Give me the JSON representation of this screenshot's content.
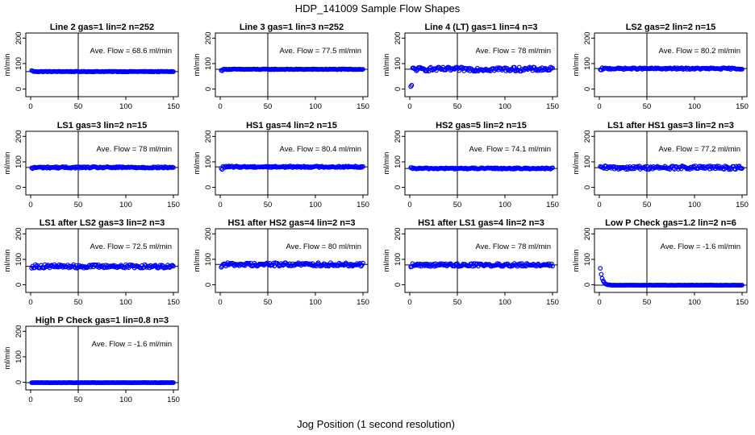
{
  "figure": {
    "title": "HDP_141009  Sample Flow Shapes",
    "xlabel": "Jog Position (1 second resolution)"
  },
  "colors": {
    "points": "#0000ff",
    "axes": "#000000",
    "background": "#ffffff"
  },
  "chart_data": [
    {
      "type": "scatter",
      "title": "Line 2 gas=1 lin=2 n=252",
      "annotation": "Ave. Flow =  68.6  ml/min",
      "ylabel": "ml/min",
      "xlim": [
        0,
        150
      ],
      "ylim": [
        -30,
        220
      ],
      "yticks": [
        0,
        100,
        200
      ],
      "xticks": [
        0,
        50,
        100,
        150
      ],
      "vline": 50,
      "hline": 68.6,
      "shape": "flat",
      "y_start": 72,
      "level": 68.6,
      "spread": 1.2
    },
    {
      "type": "scatter",
      "title": "Line 3 gas=1 lin=3 n=252",
      "annotation": "Ave. Flow =  77.5  ml/min",
      "ylabel": "ml/min",
      "xlim": [
        0,
        150
      ],
      "ylim": [
        -30,
        220
      ],
      "yticks": [
        0,
        100,
        200
      ],
      "xticks": [
        0,
        50,
        100,
        150
      ],
      "vline": 50,
      "hline": 77.5,
      "shape": "flat",
      "y_start": 73,
      "level": 77.5,
      "spread": 1.2
    },
    {
      "type": "scatter",
      "title": "Line 4 (LT) gas=1 lin=4 n=3",
      "annotation": "Ave. Flow =  78  ml/min",
      "ylabel": "ml/min",
      "xlim": [
        0,
        150
      ],
      "ylim": [
        -30,
        220
      ],
      "yticks": [
        0,
        100,
        200
      ],
      "xticks": [
        0,
        50,
        100,
        150
      ],
      "vline": 50,
      "hline": 78,
      "shape": "rise",
      "y_start": 5,
      "level": 78,
      "spread": 8
    },
    {
      "type": "scatter",
      "title": "LS2 gas=2 lin=2 n=15",
      "annotation": "Ave. Flow =  80.2  ml/min",
      "ylabel": "ml/min",
      "xlim": [
        0,
        150
      ],
      "ylim": [
        -30,
        220
      ],
      "yticks": [
        0,
        100,
        200
      ],
      "xticks": [
        0,
        50,
        100,
        150
      ],
      "vline": 50,
      "hline": 80.2,
      "shape": "flat",
      "y_start": 74,
      "level": 80.2,
      "spread": 3
    },
    {
      "type": "scatter",
      "title": "LS1 gas=3 lin=2 n=15",
      "annotation": "Ave. Flow =  78  ml/min",
      "ylabel": "ml/min",
      "xlim": [
        0,
        150
      ],
      "ylim": [
        -30,
        220
      ],
      "yticks": [
        0,
        100,
        200
      ],
      "xticks": [
        0,
        50,
        100,
        150
      ],
      "vline": 50,
      "hline": 78,
      "shape": "flat",
      "y_start": 74,
      "level": 78,
      "spread": 3
    },
    {
      "type": "scatter",
      "title": "HS1 gas=4 lin=2 n=15",
      "annotation": "Ave. Flow =  80.4  ml/min",
      "ylabel": "ml/min",
      "xlim": [
        0,
        150
      ],
      "ylim": [
        -30,
        220
      ],
      "yticks": [
        0,
        100,
        200
      ],
      "xticks": [
        0,
        50,
        100,
        150
      ],
      "vline": 50,
      "hline": 80.4,
      "shape": "flat",
      "y_start": 72,
      "level": 80.4,
      "spread": 3
    },
    {
      "type": "scatter",
      "title": "HS2 gas=5 lin=2 n=15",
      "annotation": "Ave. Flow =  74.1  ml/min",
      "ylabel": "ml/min",
      "xlim": [
        0,
        150
      ],
      "ylim": [
        -30,
        220
      ],
      "yticks": [
        0,
        100,
        200
      ],
      "xticks": [
        0,
        50,
        100,
        150
      ],
      "vline": 50,
      "hline": 74.1,
      "shape": "flat",
      "y_start": 75,
      "level": 74.1,
      "spread": 2.5
    },
    {
      "type": "scatter",
      "title": "LS1 after HS1 gas=3 lin=2 n=3",
      "annotation": "Ave. Flow =  77.2  ml/min",
      "ylabel": "ml/min",
      "xlim": [
        0,
        150
      ],
      "ylim": [
        -30,
        220
      ],
      "yticks": [
        0,
        100,
        200
      ],
      "xticks": [
        0,
        50,
        100,
        150
      ],
      "vline": 50,
      "hline": 77.2,
      "shape": "flat",
      "y_start": 75,
      "level": 77.2,
      "spread": 7
    },
    {
      "type": "scatter",
      "title": "LS1 after LS2 gas=3 lin=2 n=3",
      "annotation": "Ave. Flow =  72.5  ml/min",
      "ylabel": "ml/min",
      "xlim": [
        0,
        150
      ],
      "ylim": [
        -30,
        220
      ],
      "yticks": [
        0,
        100,
        200
      ],
      "xticks": [
        0,
        50,
        100,
        150
      ],
      "vline": 50,
      "hline": 72.5,
      "shape": "flat",
      "y_start": 72,
      "level": 72.5,
      "spread": 7
    },
    {
      "type": "scatter",
      "title": "HS1 after HS2 gas=4 lin=2 n=3",
      "annotation": "Ave. Flow =  80  ml/min",
      "ylabel": "ml/min",
      "xlim": [
        0,
        150
      ],
      "ylim": [
        -30,
        220
      ],
      "yticks": [
        0,
        100,
        200
      ],
      "xticks": [
        0,
        50,
        100,
        150
      ],
      "vline": 50,
      "hline": 80,
      "shape": "flat",
      "y_start": 75,
      "level": 80,
      "spread": 7
    },
    {
      "type": "scatter",
      "title": "HS1 after LS1 gas=4 lin=2 n=3",
      "annotation": "Ave. Flow =  78  ml/min",
      "ylabel": "ml/min",
      "xlim": [
        0,
        150
      ],
      "ylim": [
        -30,
        220
      ],
      "yticks": [
        0,
        100,
        200
      ],
      "xticks": [
        0,
        50,
        100,
        150
      ],
      "vline": 50,
      "hline": 78,
      "shape": "flat",
      "y_start": 75,
      "level": 78,
      "spread": 6
    },
    {
      "type": "scatter",
      "title": "Low P Check gas=1.2 lin=2 n=6",
      "annotation": "Ave. Flow =  -1.6  ml/min",
      "ylabel": "ml/min",
      "xlim": [
        0,
        150
      ],
      "ylim": [
        -30,
        220
      ],
      "yticks": [
        0,
        100,
        200
      ],
      "xticks": [
        0,
        50,
        100,
        150
      ],
      "vline": 50,
      "hline": -1.6,
      "shape": "decay",
      "y_start": 65,
      "level": -1.6,
      "spread": 0.4
    },
    {
      "type": "scatter",
      "title": "High P Check gas=1 lin=0.8 n=3",
      "annotation": "Ave. Flow =  -1.6  ml/min",
      "ylabel": "ml/min",
      "xlim": [
        0,
        150
      ],
      "ylim": [
        -30,
        220
      ],
      "yticks": [
        0,
        100,
        200
      ],
      "xticks": [
        0,
        50,
        100,
        150
      ],
      "vline": 50,
      "hline": -1.6,
      "shape": "flat",
      "y_start": -1.6,
      "level": -1.6,
      "spread": 0.4
    }
  ]
}
